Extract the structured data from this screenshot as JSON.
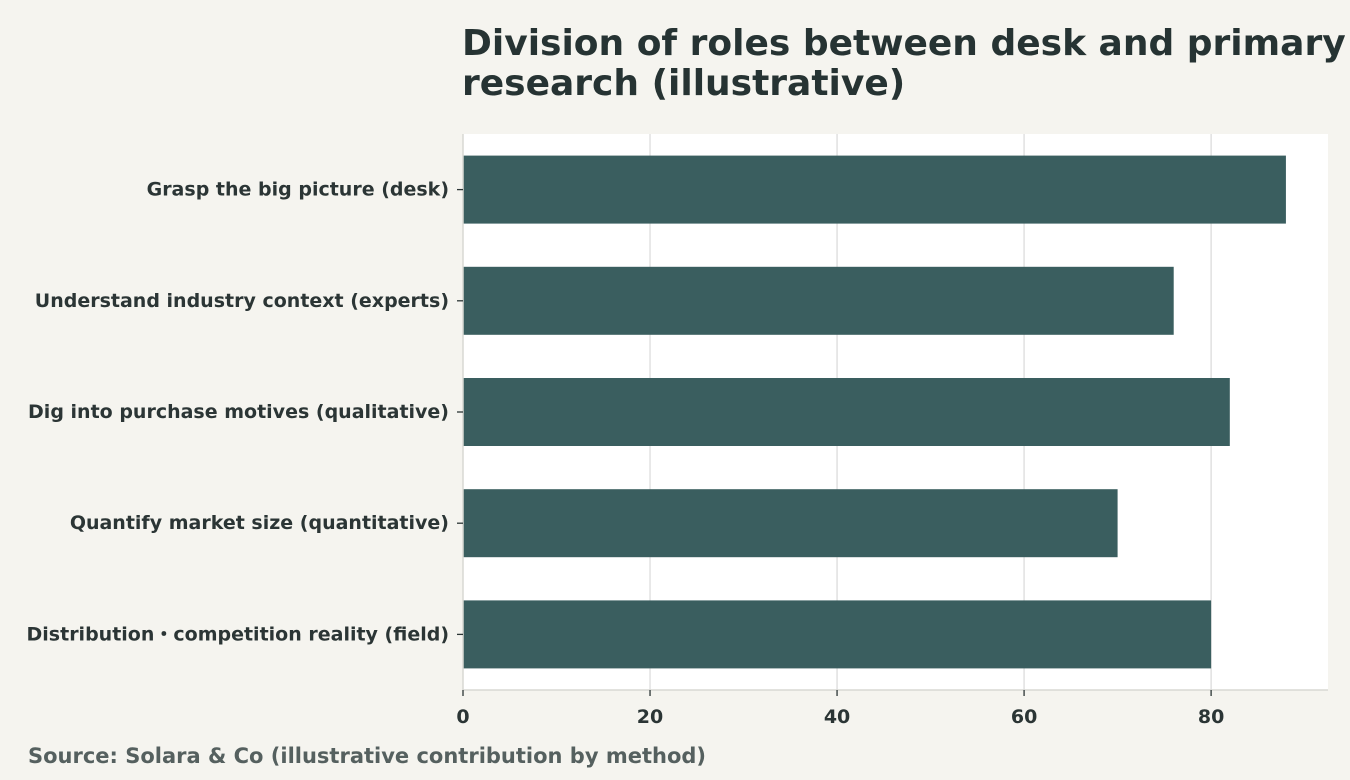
{
  "chart_data": {
    "type": "bar",
    "orientation": "horizontal",
    "title_lines": [
      "Division of roles between desk and primary",
      "research (illustrative)"
    ],
    "categories": [
      "Grasp the big picture (desk)",
      "Understand industry context (experts)",
      "Dig into purchase motives (qualitative)",
      "Quantify market size (quantitative)",
      "Distribution・competition reality (field)"
    ],
    "values": [
      88,
      76,
      82,
      70,
      80
    ],
    "xlim": [
      0,
      92.5
    ],
    "xticks": [
      0,
      20,
      40,
      60,
      80
    ],
    "grid": true,
    "xlabel": "",
    "ylabel": "",
    "source": "Source: Solara & Co (illustrative contribution by method)"
  },
  "colors": {
    "bar": "#3a5e5f",
    "background": "#f5f4ef",
    "plot_background": "#ffffff",
    "grid": "#dcdcdc",
    "axis": "#2b3535"
  }
}
